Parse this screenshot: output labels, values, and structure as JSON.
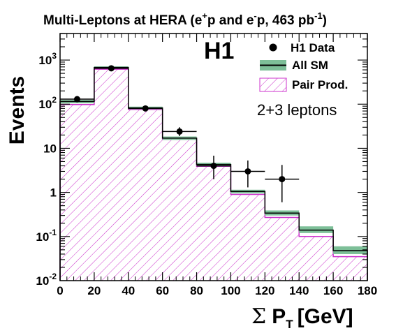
{
  "chart_data": {
    "type": "bar",
    "title": {
      "main": "Multi-Leptons at HERA (e",
      "plus": "+",
      "mid1": "p and e",
      "minus": "-",
      "mid2": "p, 463 pb",
      "exp": "-1",
      "close": ")"
    },
    "experiment_label": "H1",
    "channel_label": "2+3 leptons",
    "xlabel": {
      "sigma": "Σ",
      "p": "P",
      "sub": "T",
      "unit": "[GeV]"
    },
    "ylabel": "Events",
    "xlim": [
      0,
      180
    ],
    "ylim": [
      0.01,
      4000
    ],
    "y_scale": "log",
    "x_ticks": [
      "0",
      "20",
      "40",
      "60",
      "80",
      "100",
      "120",
      "140",
      "160",
      "180"
    ],
    "y_ticks": [
      {
        "value": 0.01,
        "base": "10",
        "exp": "-2"
      },
      {
        "value": 0.1,
        "base": "10",
        "exp": "-1"
      },
      {
        "value": 1,
        "base": "1",
        "exp": ""
      },
      {
        "value": 10,
        "base": "10",
        "exp": ""
      },
      {
        "value": 100,
        "base": "10",
        "exp": "2"
      },
      {
        "value": 1000,
        "base": "10",
        "exp": "3"
      }
    ],
    "bin_edges": [
      0,
      20,
      40,
      60,
      80,
      100,
      120,
      140,
      160,
      180
    ],
    "series": [
      {
        "name": "H1 Data",
        "type": "points",
        "x": [
          10,
          30,
          50,
          70,
          90,
          110,
          130
        ],
        "values": [
          130,
          650,
          80,
          24,
          4,
          3,
          2
        ],
        "y_err_low": [
          10,
          25,
          9,
          5,
          2,
          1.7,
          1.4
        ],
        "y_err_high": [
          12,
          27,
          10,
          6,
          2.8,
          2.3,
          2.2
        ],
        "x_err": 10
      },
      {
        "name": "All SM",
        "type": "step_band",
        "values": [
          115,
          680,
          82,
          17,
          4.3,
          1.05,
          0.34,
          0.14,
          0.048
        ],
        "band_low": [
          105,
          640,
          77,
          15.5,
          3.9,
          0.95,
          0.3,
          0.12,
          0.04
        ],
        "band_high": [
          125,
          720,
          88,
          18.5,
          4.7,
          1.15,
          0.39,
          0.17,
          0.06
        ]
      },
      {
        "name": "Pair Prod.",
        "type": "hatched_hist",
        "values": [
          98,
          620,
          76,
          16,
          3.9,
          0.9,
          0.27,
          0.1,
          0.035
        ]
      }
    ],
    "legend_placement": "top-right",
    "colors": {
      "band": "#7dbf98",
      "hatch": "#cc33cc",
      "line": "#000000",
      "data": "#000000"
    }
  }
}
